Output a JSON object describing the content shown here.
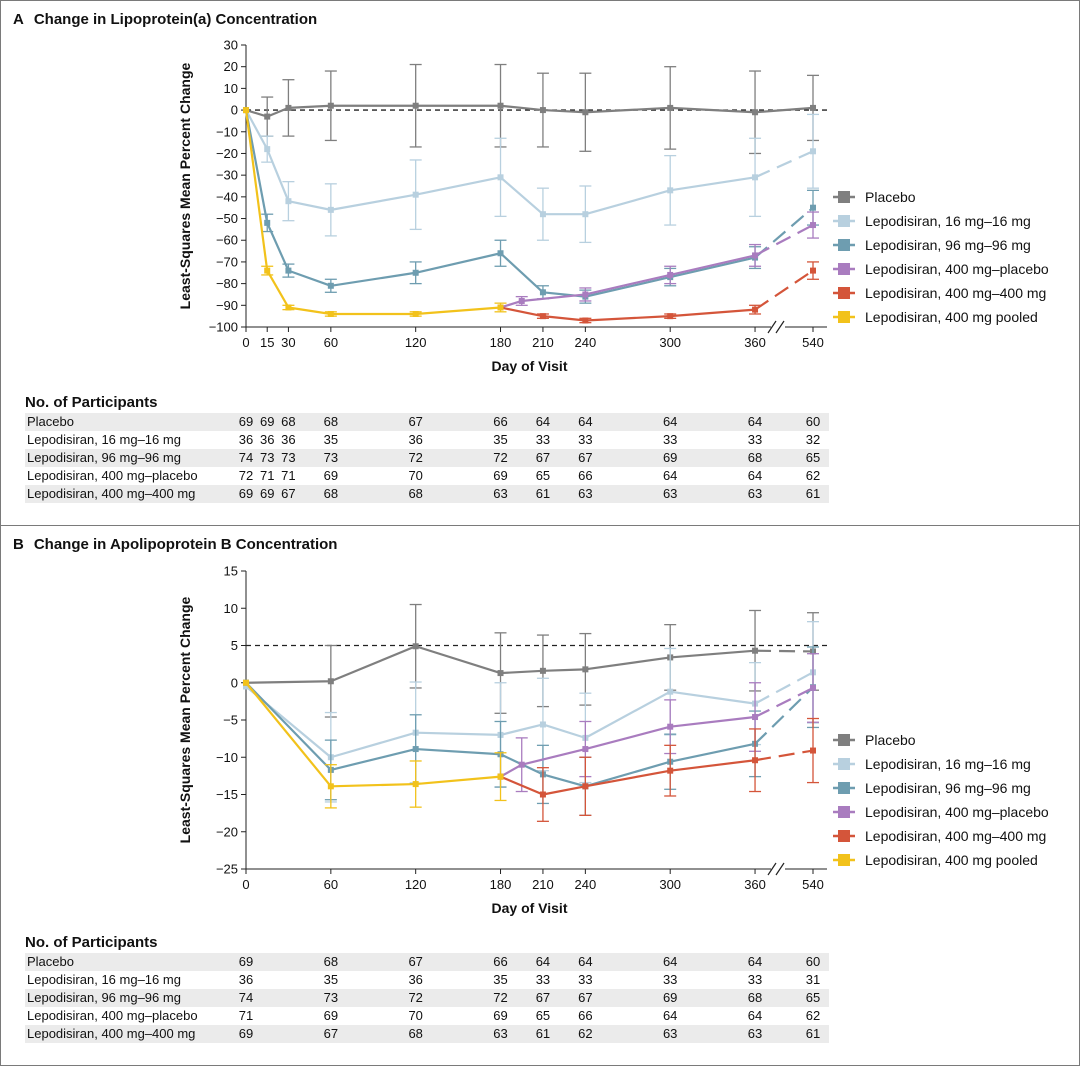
{
  "figure": {
    "panels": [
      {
        "letter": "A",
        "title": "Change in Lipoprotein(a) Concentration",
        "participants_title": "No. of Participants"
      },
      {
        "letter": "B",
        "title": "Change in Apolipoprotein B Concentration",
        "participants_title": "No. of Participants"
      }
    ]
  },
  "colors": {
    "Placebo": "#7f7f7f",
    "Lepodisiran, 16 mg–16 mg": "#b8d0df",
    "Lepodisiran, 96 mg–96 mg": "#6e9db0",
    "Lepodisiran, 400 mg–placebo": "#a97cbf",
    "Lepodisiran, 400 mg–400 mg": "#d4553a",
    "Lepodisiran, 400 mg pooled": "#f2c21b"
  },
  "chart_data": [
    {
      "type": "line",
      "title": "Change in Lipoprotein(a) Concentration",
      "xlabel": "Day of Visit",
      "ylabel": "Least-Squares Mean Percent Change",
      "x_ticks": [
        0,
        15,
        30,
        60,
        120,
        180,
        210,
        240,
        300,
        360,
        540
      ],
      "axis_break_between": [
        360,
        540
      ],
      "ylim": [
        -100,
        30
      ],
      "y_ticks": [
        30,
        20,
        10,
        0,
        -10,
        -20,
        -30,
        -40,
        -50,
        -60,
        -70,
        -80,
        -90,
        -100
      ],
      "reference_line": 0,
      "legend": [
        "Placebo",
        "Lepodisiran, 16 mg–16 mg",
        "Lepodisiran, 96 mg–96 mg",
        "Lepodisiran, 400 mg–placebo",
        "Lepodisiran, 400 mg–400 mg",
        "Lepodisiran, 400 mg pooled"
      ],
      "series": [
        {
          "name": "Placebo",
          "x": [
            0,
            15,
            30,
            60,
            120,
            180,
            210,
            240,
            300,
            360,
            540
          ],
          "y": [
            0,
            -3,
            1,
            2,
            2,
            2,
            0,
            -1,
            1,
            -1,
            1
          ],
          "err": [
            0,
            9,
            13,
            16,
            19,
            19,
            17,
            18,
            19,
            19,
            15
          ],
          "dash_last": false
        },
        {
          "name": "Lepodisiran, 16 mg–16 mg",
          "x": [
            0,
            15,
            30,
            60,
            120,
            180,
            210,
            240,
            300,
            360,
            540
          ],
          "y": [
            0,
            -18,
            -42,
            -46,
            -39,
            -31,
            -48,
            -48,
            -37,
            -31,
            -19
          ],
          "err": [
            0,
            6,
            9,
            12,
            16,
            18,
            12,
            13,
            16,
            18,
            17
          ],
          "dash_last": true
        },
        {
          "name": "Lepodisiran, 96 mg–96 mg",
          "x": [
            0,
            15,
            30,
            60,
            120,
            180,
            210,
            240,
            300,
            360,
            540
          ],
          "y": [
            0,
            -52,
            -74,
            -81,
            -75,
            -66,
            -84,
            -86,
            -77,
            -68,
            -45
          ],
          "err": [
            0,
            4,
            3,
            3,
            5,
            6,
            3,
            3,
            4,
            5,
            8
          ],
          "dash_last": true
        },
        {
          "name": "Lepodisiran, 400 mg–placebo",
          "x": [
            180,
            195,
            240,
            300,
            360,
            540
          ],
          "y": [
            -91,
            -88,
            -85,
            -76,
            -67,
            -53
          ],
          "err": [
            0,
            2,
            3,
            4,
            5,
            6
          ],
          "dash_last": true
        },
        {
          "name": "Lepodisiran, 400 mg–400 mg",
          "x": [
            180,
            210,
            240,
            300,
            360,
            540
          ],
          "y": [
            -91,
            -95,
            -97,
            -95,
            -92,
            -74
          ],
          "err": [
            0,
            1,
            1,
            1,
            2,
            4
          ],
          "dash_last": true
        },
        {
          "name": "Lepodisiran, 400 mg pooled",
          "x": [
            0,
            15,
            30,
            60,
            120,
            180
          ],
          "y": [
            0,
            -74,
            -91,
            -94,
            -94,
            -91
          ],
          "err": [
            0,
            2,
            1,
            1,
            1,
            2
          ],
          "dash_last": false
        }
      ],
      "participants": {
        "visit_days": [
          0,
          15,
          30,
          60,
          120,
          180,
          210,
          240,
          300,
          360,
          540
        ],
        "rows": [
          {
            "label": "Placebo",
            "counts": [
              "69",
              "69",
              "68",
              "68",
              "67",
              "66",
              "64",
              "64",
              "64",
              "64",
              "60"
            ]
          },
          {
            "label": "Lepodisiran, 16 mg–16 mg",
            "counts": [
              "36",
              "36",
              "36",
              "35",
              "36",
              "35",
              "33",
              "33",
              "33",
              "33",
              "32"
            ]
          },
          {
            "label": "Lepodisiran, 96 mg–96 mg",
            "counts": [
              "74",
              "73",
              "73",
              "73",
              "72",
              "72",
              "67",
              "67",
              "69",
              "68",
              "65"
            ]
          },
          {
            "label": "Lepodisiran, 400 mg–placebo",
            "counts": [
              "72",
              "71",
              "71",
              "69",
              "70",
              "69",
              "65",
              "66",
              "64",
              "64",
              "62"
            ]
          },
          {
            "label": "Lepodisiran, 400 mg–400 mg",
            "counts": [
              "69",
              "69",
              "67",
              "68",
              "68",
              "63",
              "61",
              "63",
              "63",
              "63",
              "61"
            ]
          }
        ]
      }
    },
    {
      "type": "line",
      "title": "Change in Apolipoprotein B Concentration",
      "xlabel": "Day of Visit",
      "ylabel": "Least-Squares Mean Percent Change",
      "x_ticks": [
        0,
        60,
        120,
        180,
        210,
        240,
        300,
        360,
        540
      ],
      "axis_break_between": [
        360,
        540
      ],
      "ylim": [
        -25,
        15
      ],
      "y_ticks": [
        15,
        10,
        5,
        0,
        -5,
        -10,
        -15,
        -20,
        -25
      ],
      "reference_line": 5,
      "legend": [
        "Placebo",
        "Lepodisiran, 16 mg–16 mg",
        "Lepodisiran, 96 mg–96 mg",
        "Lepodisiran, 400 mg–placebo",
        "Lepodisiran, 400 mg–400 mg",
        "Lepodisiran, 400 mg pooled"
      ],
      "series": [
        {
          "name": "Placebo",
          "x": [
            0,
            60,
            120,
            180,
            210,
            240,
            300,
            360,
            540
          ],
          "y": [
            0,
            0.2,
            4.9,
            1.3,
            1.6,
            1.8,
            3.4,
            4.3,
            4.2
          ],
          "err": [
            0,
            4.8,
            5.6,
            5.4,
            4.8,
            4.8,
            4.4,
            5.4,
            5.2
          ],
          "dash_last": true
        },
        {
          "name": "Lepodisiran, 16 mg–16 mg",
          "x": [
            0,
            60,
            120,
            180,
            210,
            240,
            300,
            360,
            540
          ],
          "y": [
            -0.5,
            -10,
            -6.7,
            -7,
            -5.6,
            -7.4,
            -1.2,
            -2.8,
            1.4
          ],
          "err": [
            0,
            6,
            6.8,
            7,
            6.2,
            6,
            5.8,
            5.5,
            6.8
          ],
          "dash_last": true
        },
        {
          "name": "Lepodisiran, 96 mg–96 mg",
          "x": [
            0,
            60,
            120,
            180,
            210,
            240,
            300,
            360,
            540
          ],
          "y": [
            0,
            -11.7,
            -8.9,
            -9.6,
            -12.3,
            -13.9,
            -10.6,
            -8.2,
            -0.6
          ],
          "err": [
            0,
            4,
            4.6,
            4.4,
            3.9,
            3.9,
            3.7,
            4.4,
            5.4
          ],
          "dash_last": true
        },
        {
          "name": "Lepodisiran, 400 mg–placebo",
          "x": [
            180,
            195,
            240,
            300,
            360,
            540
          ],
          "y": [
            -12.6,
            -11,
            -8.9,
            -5.9,
            -4.6,
            -0.7
          ],
          "err": [
            0,
            3.6,
            3.7,
            3.6,
            4.6,
            4.6
          ],
          "dash_last": true
        },
        {
          "name": "Lepodisiran, 400 mg–400 mg",
          "x": [
            180,
            210,
            240,
            300,
            360,
            540
          ],
          "y": [
            -12.6,
            -15,
            -13.9,
            -11.8,
            -10.4,
            -9.1
          ],
          "err": [
            0,
            3.6,
            3.9,
            3.4,
            4.2,
            4.3
          ],
          "dash_last": true
        },
        {
          "name": "Lepodisiran, 400 mg pooled",
          "x": [
            0,
            60,
            120,
            180
          ],
          "y": [
            0,
            -13.9,
            -13.6,
            -12.6
          ],
          "err": [
            0,
            2.9,
            3.1,
            3.2
          ],
          "dash_last": false
        }
      ],
      "participants": {
        "visit_days": [
          0,
          60,
          120,
          180,
          210,
          240,
          300,
          360,
          540
        ],
        "rows": [
          {
            "label": "Placebo",
            "counts": [
              "69",
              "68",
              "67",
              "66",
              "64",
              "64",
              "64",
              "64",
              "60"
            ]
          },
          {
            "label": "Lepodisiran, 16 mg–16 mg",
            "counts": [
              "36",
              "35",
              "36",
              "35",
              "33",
              "33",
              "33",
              "33",
              "31"
            ]
          },
          {
            "label": "Lepodisiran, 96 mg–96 mg",
            "counts": [
              "74",
              "73",
              "72",
              "72",
              "67",
              "67",
              "69",
              "68",
              "65"
            ]
          },
          {
            "label": "Lepodisiran, 400 mg–placebo",
            "counts": [
              "71",
              "69",
              "70",
              "69",
              "65",
              "66",
              "64",
              "64",
              "62"
            ]
          },
          {
            "label": "Lepodisiran, 400 mg–400 mg",
            "counts": [
              "69",
              "67",
              "68",
              "63",
              "61",
              "62",
              "63",
              "63",
              "61"
            ]
          }
        ]
      }
    }
  ]
}
